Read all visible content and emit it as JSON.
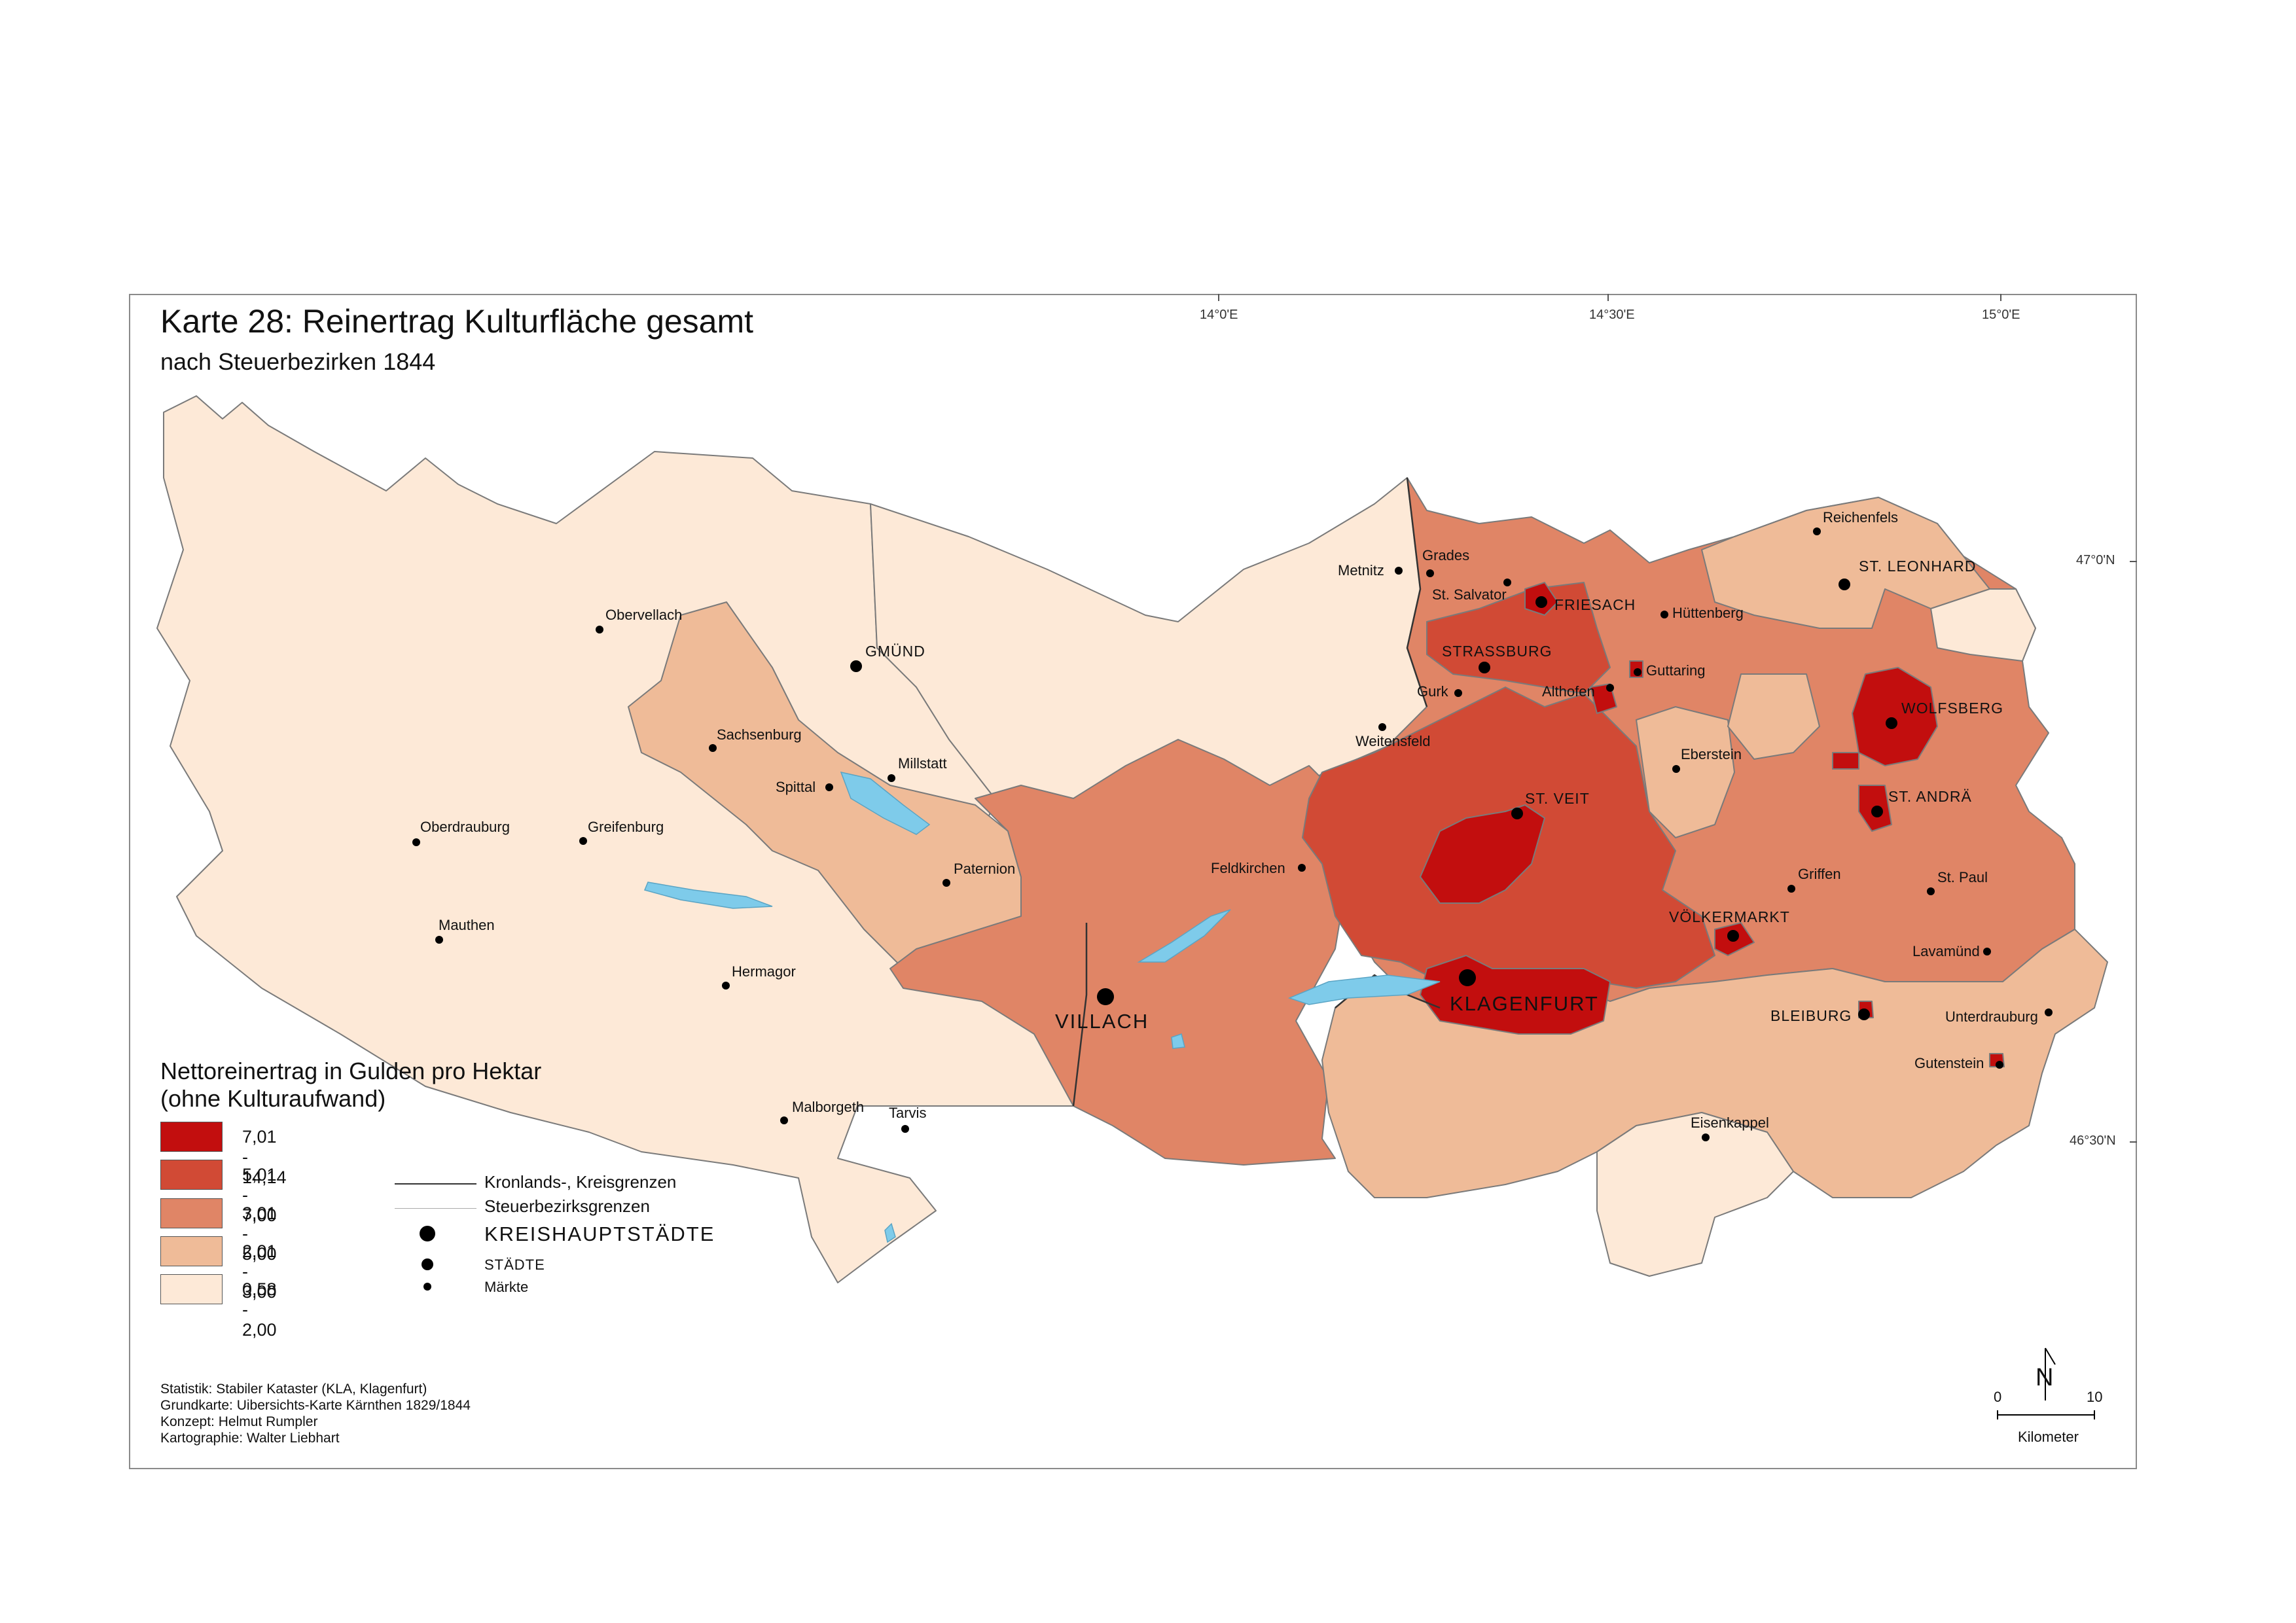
{
  "title": "Karte 28: Reinertrag Kulturfläche gesamt",
  "subtitle": "nach Steuerbezirken 1844",
  "graticule": {
    "lon_14_0": "14°0'E",
    "lon_14_30": "14°30'E",
    "lon_15_0": "15°0'E",
    "lat_47_0": "47°0'N",
    "lat_46_30": "46°30'N"
  },
  "colors": {
    "c1": "#c20e0e",
    "c2": "#d14a35",
    "c3": "#e08566",
    "c4": "#efbb98",
    "c5": "#fde9d7",
    "water": "#7ecbea",
    "border": "#777777"
  },
  "map_labels": {
    "kreishauptstaedte": [
      "VILLACH",
      "KLAGENFURT"
    ],
    "staedte": [
      "GMÜND",
      "FRIESACH",
      "STRASSBURG",
      "ST. VEIT",
      "WOLFSBERG",
      "ST. ANDRÄ",
      "VÖLKERMARKT",
      "BLEIBURG",
      "ST. LEONHARD"
    ],
    "maerkte": [
      "Obervellach",
      "Sachsenburg",
      "Millstatt",
      "Spittal",
      "Oberdrauburg",
      "Greifenburg",
      "Mauthen",
      "Paternion",
      "Hermagor",
      "Malborgeth",
      "Tarvis",
      "Metnitz",
      "Grades",
      "St. Salvator",
      "Hüttenberg",
      "Gurk",
      "Althofen",
      "Guttaring",
      "Weitensfeld",
      "Feldkirchen",
      "Eberstein",
      "Griffen",
      "St. Paul",
      "Lavamünd",
      "Unterdrauburg",
      "Gutenstein",
      "Eisenkappel",
      "Reichenfels"
    ]
  },
  "legend": {
    "title_line1": "Nettoreinertrag in Gulden pro Hektar",
    "title_line2": "(ohne Kulturaufwand)",
    "classes": [
      {
        "label": "7,01 - 14,14",
        "color": "#c20e0e"
      },
      {
        "label": "5,01 - 7,00",
        "color": "#d14a35"
      },
      {
        "label": "3,01 - 5,00",
        "color": "#e08566"
      },
      {
        "label": "2,01 - 3,00",
        "color": "#efbb98"
      },
      {
        "label": "0,58 - 2,00",
        "color": "#fde9d7"
      }
    ],
    "symbols": {
      "kronland_line": "Kronlands-, Kreisgrenzen",
      "bezirk_line": "Steuerbezirksgrenzen",
      "kreishauptstaedte": "KREISHAUPTSTÄDTE",
      "staedte": "STÄDTE",
      "maerkte": "Märkte"
    }
  },
  "credits": {
    "statistik": "Statistik: Stabiler Kataster (KLA, Klagenfurt)",
    "grundkarte": "Grundkarte: Uibersichts-Karte Kärnthen 1829/1844",
    "konzept": "Konzept: Helmut Rumpler",
    "kartographie": "Kartographie: Walter Liebhart"
  },
  "scale_bar": {
    "start": "0",
    "end": "10",
    "unit": "Kilometer",
    "north": "N"
  }
}
